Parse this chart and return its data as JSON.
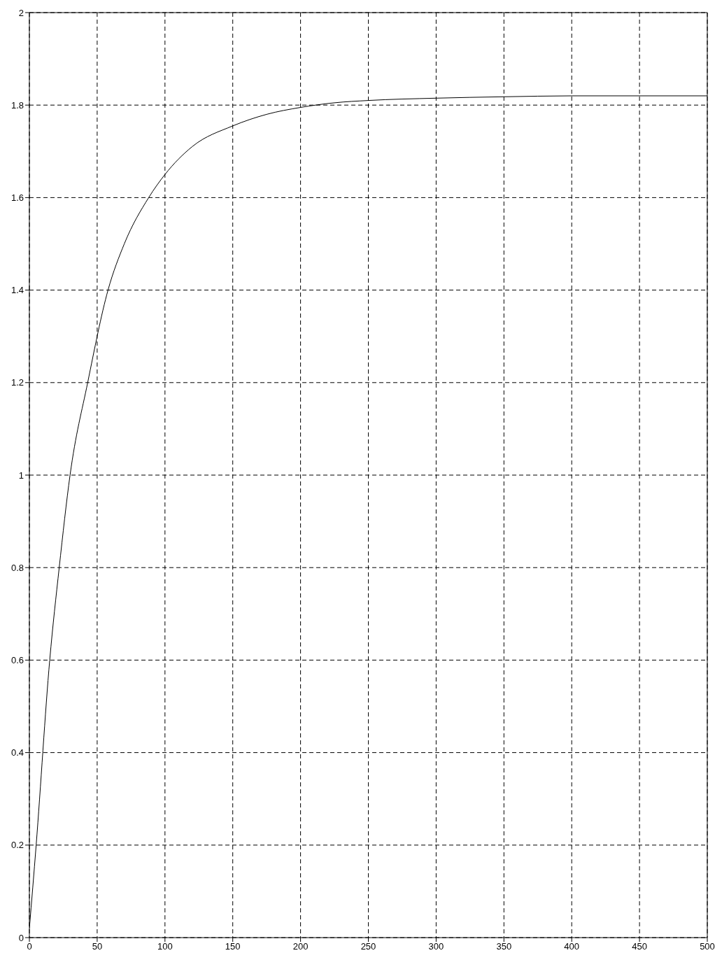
{
  "chart_data": {
    "type": "line",
    "x": [
      0,
      5,
      15,
      22,
      30,
      43,
      58,
      70,
      88,
      100,
      120,
      150,
      175,
      200,
      225,
      250,
      300,
      350,
      400,
      500
    ],
    "series": [
      {
        "color": "#000000",
        "values": [
          0.02,
          0.2,
          0.6,
          0.8,
          1.0,
          1.2,
          1.4,
          1.5,
          1.6,
          1.65,
          1.71,
          1.755,
          1.78,
          1.795,
          1.805,
          1.81,
          1.815,
          1.818,
          1.82,
          1.82
        ]
      }
    ],
    "xlim": [
      0,
      500
    ],
    "ylim": [
      0,
      2
    ],
    "xticks": [
      0,
      50,
      100,
      150,
      200,
      250,
      300,
      350,
      400,
      450,
      500
    ],
    "yticks": [
      0,
      0.2,
      0.4,
      0.6,
      0.8,
      1,
      1.2,
      1.4,
      1.6,
      1.8,
      2
    ],
    "grid": true
  }
}
